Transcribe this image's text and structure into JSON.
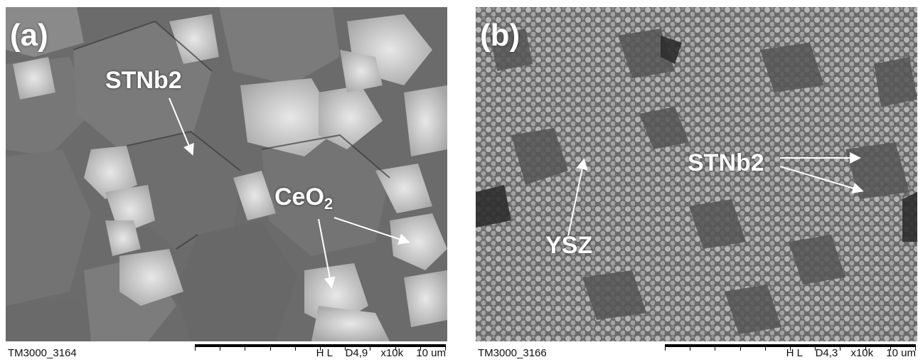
{
  "panels": [
    {
      "letter": "(a)",
      "labels": {
        "stnb": "STNb2",
        "ceo": "CeO",
        "ceo_sub": "2"
      },
      "scalebar": {
        "id": "TM3000_3164",
        "mode": "H L",
        "detector": "D4,9",
        "mag": "x10k",
        "scale": "10 um"
      }
    },
    {
      "letter": "(b)",
      "labels": {
        "ysz": "YSZ",
        "stnb": "STNb2"
      },
      "scalebar": {
        "id": "TM3000_3166",
        "mode": "H L",
        "detector": "D4,3",
        "mag": "x10k",
        "scale": "10 um"
      }
    }
  ],
  "colors": {
    "background": "#ffffff",
    "label": "#ffffff",
    "scalebar": "#000000"
  }
}
